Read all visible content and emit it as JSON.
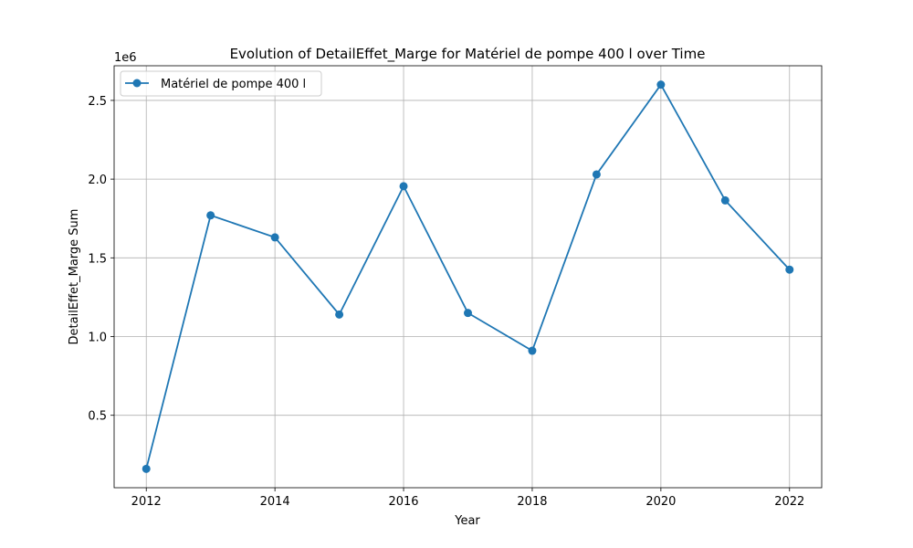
{
  "chart_data": {
    "type": "line",
    "title": "Evolution of DetailEffet_Marge for Matériel de pompe 400 l over Time",
    "xlabel": "Year",
    "ylabel": "DetailEffet_Marge Sum",
    "y_scale_label": "1e6",
    "x": [
      2012,
      2013,
      2014,
      2015,
      2016,
      2017,
      2018,
      2019,
      2020,
      2021,
      2022
    ],
    "series": [
      {
        "name": "Matériel de pompe 400 l",
        "color": "#1f77b4",
        "marker": "circle",
        "values": [
          160000,
          1770000,
          1630000,
          1140000,
          1955000,
          1150000,
          910000,
          2030000,
          2600000,
          1865000,
          1425000
        ]
      }
    ],
    "xlim": [
      2011.5,
      2022.5
    ],
    "ylim": [
      40000,
      2720000
    ],
    "x_ticks": [
      2012,
      2014,
      2016,
      2018,
      2020,
      2022
    ],
    "x_tick_labels": [
      "2012",
      "2014",
      "2016",
      "2018",
      "2020",
      "2022"
    ],
    "y_ticks": [
      500000,
      1000000,
      1500000,
      2000000,
      2500000
    ],
    "y_tick_labels": [
      "0.5",
      "1.0",
      "1.5",
      "2.0",
      "2.5"
    ],
    "grid": true,
    "legend_position": "top-left"
  }
}
